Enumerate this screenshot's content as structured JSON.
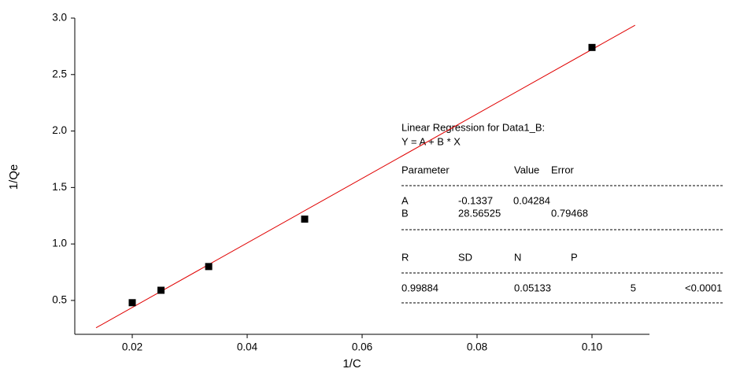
{
  "chart_data": {
    "type": "scatter",
    "x_label": "1/C",
    "y_label": "1/Qe",
    "x": [
      0.02,
      0.025,
      0.0333,
      0.05,
      0.1
    ],
    "values": [
      0.48,
      0.59,
      0.8,
      1.22,
      2.74
    ],
    "color": "#000000",
    "fit_color": "#e00000",
    "fit_xlim": [
      0.0137,
      0.1075
    ],
    "xlim": [
      0.01,
      0.11
    ],
    "ylim": [
      0.2,
      3.0
    ],
    "xticks": [
      0.02,
      0.04,
      0.06,
      0.08,
      {
        "value": 0.1,
        "label": "0.10"
      }
    ],
    "yticks": [
      0.5,
      {
        "value": 1,
        "label": "1.0"
      },
      1.5,
      {
        "value": 2,
        "label": "2.0"
      },
      2.5,
      {
        "value": 3,
        "label": "3.0"
      }
    ],
    "annotation": {
      "title": "Linear Regression for Data1_B:",
      "equation": "Y = A + B * X",
      "param_header": [
        "Parameter",
        "Value",
        "Error"
      ],
      "params": [
        [
          "A",
          -0.1337,
          0.04284
        ],
        [
          "B",
          28.56525,
          0.79468
        ]
      ],
      "stat_header": [
        "R",
        "SD",
        "N",
        "P"
      ],
      "stats": [
        0.99884,
        0.05133,
        5,
        "<0.0001"
      ]
    }
  }
}
